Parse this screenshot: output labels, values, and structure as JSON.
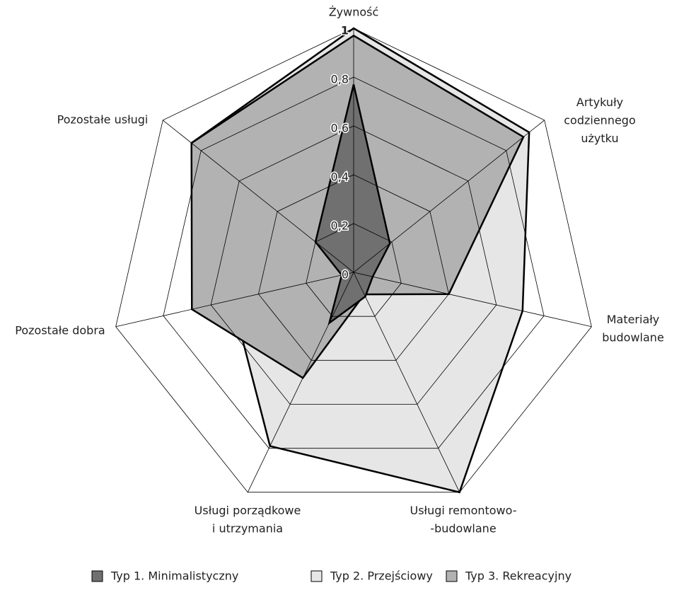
{
  "chart_data": {
    "type": "radar",
    "categories": [
      "Żywność",
      "Artykuły\ncodziennego\nużytku",
      "Materiały\nbudowlane",
      "Usługi remontowo-\n-budowlane",
      "Usługi porządkowe\ni utrzymania",
      "Pozostałe dobra",
      "Pozostałe usługi"
    ],
    "series": [
      {
        "name": "Typ 1. Minimalistyczny",
        "color": "#707070",
        "values": [
          0.77,
          0.19,
          0.08,
          0.11,
          0.23,
          0.05,
          0.2
        ]
      },
      {
        "name": "Typ 2. Przejściowy",
        "color": "#e6e6e6",
        "values": [
          1,
          0.92,
          0.71,
          1,
          0.79,
          0.51,
          0.85
        ]
      },
      {
        "name": "Typ 3. Rekreacyjny",
        "color": "#b2b2b2",
        "values": [
          0.97,
          0.89,
          0.4,
          0.1,
          0.48,
          0.68,
          0.85
        ]
      }
    ],
    "ylim": [
      0,
      1
    ],
    "yticks": [
      0,
      {
        "value": 0.2,
        "label": "0,2"
      },
      {
        "value": 0.4,
        "label": "0,4"
      },
      {
        "value": 0.6,
        "label": "0,6"
      },
      {
        "value": 0.8,
        "label": "0,8"
      },
      1
    ],
    "grid": true,
    "legend": "bottom"
  }
}
